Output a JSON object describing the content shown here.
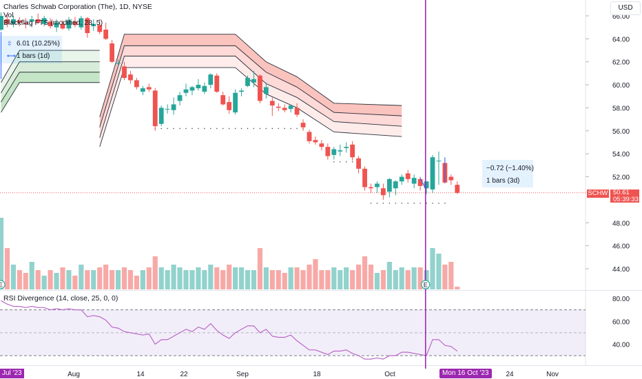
{
  "header": {
    "title": "Charles Schwab Corporation (The), 1D, NYSE",
    "vol": "Vol",
    "indicator": "Blackflag FTS (modified, 28, 5)"
  },
  "currency_button": "USD",
  "measure_left": {
    "change": "6.01 (10.25%)",
    "bars": "1 bars (1d)"
  },
  "measure_right": {
    "change": "−0.72 (−1.40%)",
    "bars": "1 bars (3d)"
  },
  "price_tag": {
    "symbol": "SCHW",
    "price": "50.61",
    "countdown": "05:39:33"
  },
  "rsi": {
    "title": "RSI Divergence (14, close, 25, 0, 0)"
  },
  "x_axis": {
    "start_label": "Jul '23",
    "labels": [
      "Aug",
      "14",
      "22",
      "Sep",
      "18",
      "Oct",
      "24",
      "Nov"
    ],
    "crosshair_label": "Mon 16 Oct '23"
  },
  "y_axis": {
    "price_ticks": [
      "66.00",
      "64.00",
      "62.00",
      "60.00",
      "58.00",
      "56.00",
      "54.00",
      "52.00",
      "48.00",
      "46.00",
      "44.00"
    ],
    "rsi_ticks": [
      "80.00",
      "60.00",
      "40.00"
    ]
  },
  "earnings_marker": "E",
  "colors": {
    "up": "#26a69a",
    "down": "#ef5350",
    "crosshair": "#9c27b0",
    "band_red": "#f44336",
    "band_green": "#4caf50",
    "rsi_line": "#ba68c8"
  },
  "chart_data": {
    "type": "candlestick",
    "symbol": "SCHW",
    "interval": "1D",
    "last_price": 50.61,
    "ylim": [
      42.5,
      67
    ],
    "rsi_ylim": [
      20,
      90
    ],
    "candles": [
      {
        "o": 64.8,
        "h": 66.3,
        "l": 64.7,
        "c": 66.0
      },
      {
        "o": 65.7,
        "h": 66.1,
        "l": 65.0,
        "c": 65.3
      },
      {
        "o": 65.3,
        "h": 66.0,
        "l": 65.0,
        "c": 65.7
      },
      {
        "o": 65.6,
        "h": 65.9,
        "l": 65.1,
        "c": 65.4
      },
      {
        "o": 65.4,
        "h": 65.8,
        "l": 64.9,
        "c": 65.3
      },
      {
        "o": 65.5,
        "h": 66.0,
        "l": 65.0,
        "c": 65.7
      },
      {
        "o": 65.7,
        "h": 66.2,
        "l": 65.3,
        "c": 65.4
      },
      {
        "o": 65.3,
        "h": 66.0,
        "l": 65.1,
        "c": 65.8
      },
      {
        "o": 65.5,
        "h": 65.8,
        "l": 64.9,
        "c": 65.1
      },
      {
        "o": 65.0,
        "h": 65.7,
        "l": 64.6,
        "c": 65.4
      },
      {
        "o": 65.3,
        "h": 65.6,
        "l": 64.8,
        "c": 64.9
      },
      {
        "o": 64.9,
        "h": 65.9,
        "l": 64.7,
        "c": 65.6
      },
      {
        "o": 65.5,
        "h": 65.9,
        "l": 65.0,
        "c": 65.2
      },
      {
        "o": 65.0,
        "h": 66.0,
        "l": 64.8,
        "c": 65.8
      },
      {
        "o": 65.8,
        "h": 65.9,
        "l": 64.1,
        "c": 64.5
      },
      {
        "o": 65.1,
        "h": 65.7,
        "l": 64.7,
        "c": 65.3
      },
      {
        "o": 65.2,
        "h": 65.7,
        "l": 64.4,
        "c": 64.6
      },
      {
        "o": 64.8,
        "h": 65.4,
        "l": 63.9,
        "c": 64.0
      },
      {
        "o": 63.6,
        "h": 63.9,
        "l": 61.9,
        "c": 62.0
      },
      {
        "o": 61.9,
        "h": 62.2,
        "l": 61.6,
        "c": 61.9
      },
      {
        "o": 61.6,
        "h": 62.0,
        "l": 60.4,
        "c": 60.6
      },
      {
        "o": 60.9,
        "h": 61.2,
        "l": 60.1,
        "c": 60.4
      },
      {
        "o": 60.4,
        "h": 60.6,
        "l": 59.6,
        "c": 59.8
      },
      {
        "o": 59.4,
        "h": 59.9,
        "l": 59.1,
        "c": 59.7
      },
      {
        "o": 59.8,
        "h": 60.1,
        "l": 59.4,
        "c": 59.6
      },
      {
        "o": 59.5,
        "h": 59.7,
        "l": 56.0,
        "c": 56.4
      },
      {
        "o": 56.6,
        "h": 58.2,
        "l": 56.4,
        "c": 58.0
      },
      {
        "o": 57.9,
        "h": 58.3,
        "l": 57.5,
        "c": 57.9
      },
      {
        "o": 57.8,
        "h": 58.9,
        "l": 57.4,
        "c": 58.3
      },
      {
        "o": 58.6,
        "h": 59.4,
        "l": 58.2,
        "c": 59.1
      },
      {
        "o": 59.3,
        "h": 60.1,
        "l": 59.0,
        "c": 59.6
      },
      {
        "o": 59.5,
        "h": 59.9,
        "l": 59.1,
        "c": 59.8
      },
      {
        "o": 59.7,
        "h": 60.5,
        "l": 59.5,
        "c": 60.0
      },
      {
        "o": 59.4,
        "h": 60.2,
        "l": 59.2,
        "c": 59.9
      },
      {
        "o": 60.0,
        "h": 61.0,
        "l": 59.7,
        "c": 60.9
      },
      {
        "o": 60.8,
        "h": 61.0,
        "l": 59.3,
        "c": 59.4
      },
      {
        "o": 59.1,
        "h": 59.4,
        "l": 58.2,
        "c": 58.3
      },
      {
        "o": 58.5,
        "h": 59.0,
        "l": 57.5,
        "c": 57.8
      },
      {
        "o": 57.6,
        "h": 59.6,
        "l": 57.4,
        "c": 59.3
      },
      {
        "o": 59.4,
        "h": 59.7,
        "l": 59.0,
        "c": 59.5
      },
      {
        "o": 59.9,
        "h": 60.8,
        "l": 59.8,
        "c": 60.6
      },
      {
        "o": 60.2,
        "h": 61.2,
        "l": 59.8,
        "c": 60.5
      },
      {
        "o": 60.8,
        "h": 60.9,
        "l": 58.4,
        "c": 58.6
      },
      {
        "o": 59.2,
        "h": 60.2,
        "l": 58.8,
        "c": 59.8
      },
      {
        "o": 58.6,
        "h": 58.9,
        "l": 57.3,
        "c": 58.2
      },
      {
        "o": 58.1,
        "h": 58.4,
        "l": 57.7,
        "c": 58.0
      },
      {
        "o": 58.0,
        "h": 58.3,
        "l": 57.6,
        "c": 57.8
      },
      {
        "o": 57.9,
        "h": 58.2,
        "l": 57.6,
        "c": 58.2
      },
      {
        "o": 58.0,
        "h": 58.4,
        "l": 57.2,
        "c": 57.4
      },
      {
        "o": 56.7,
        "h": 57.0,
        "l": 56.0,
        "c": 56.3
      },
      {
        "o": 55.9,
        "h": 56.1,
        "l": 54.9,
        "c": 55.1
      },
      {
        "o": 55.2,
        "h": 55.5,
        "l": 54.8,
        "c": 55.0
      },
      {
        "o": 54.9,
        "h": 55.2,
        "l": 54.3,
        "c": 54.6
      },
      {
        "o": 54.6,
        "h": 54.9,
        "l": 53.5,
        "c": 53.8
      },
      {
        "o": 53.9,
        "h": 54.6,
        "l": 53.5,
        "c": 54.4
      },
      {
        "o": 54.2,
        "h": 54.8,
        "l": 53.8,
        "c": 54.3
      },
      {
        "o": 54.5,
        "h": 55.0,
        "l": 54.1,
        "c": 54.6
      },
      {
        "o": 54.8,
        "h": 55.1,
        "l": 53.4,
        "c": 53.7
      },
      {
        "o": 53.6,
        "h": 53.8,
        "l": 52.3,
        "c": 52.7
      },
      {
        "o": 52.7,
        "h": 52.9,
        "l": 50.8,
        "c": 51.1
      },
      {
        "o": 51.1,
        "h": 51.4,
        "l": 50.6,
        "c": 51.0
      },
      {
        "o": 51.1,
        "h": 51.6,
        "l": 50.6,
        "c": 51.4
      },
      {
        "o": 51.0,
        "h": 51.4,
        "l": 50.0,
        "c": 50.4
      },
      {
        "o": 50.7,
        "h": 51.9,
        "l": 50.2,
        "c": 51.8
      },
      {
        "o": 51.0,
        "h": 51.7,
        "l": 50.4,
        "c": 51.6
      },
      {
        "o": 51.6,
        "h": 52.2,
        "l": 51.3,
        "c": 52.0
      },
      {
        "o": 52.3,
        "h": 52.6,
        "l": 51.5,
        "c": 51.8
      },
      {
        "o": 51.4,
        "h": 52.2,
        "l": 51.0,
        "c": 51.9
      },
      {
        "o": 51.8,
        "h": 52.0,
        "l": 50.8,
        "c": 51.2
      },
      {
        "o": 51.0,
        "h": 51.6,
        "l": 50.5,
        "c": 51.6
      },
      {
        "o": 50.9,
        "h": 53.9,
        "l": 50.6,
        "c": 53.7
      },
      {
        "o": 53.4,
        "h": 54.2,
        "l": 51.3,
        "c": 53.4
      },
      {
        "o": 53.2,
        "h": 53.5,
        "l": 51.4,
        "c": 51.5
      },
      {
        "o": 52.0,
        "h": 52.2,
        "l": 51.3,
        "c": 51.7
      },
      {
        "o": 51.3,
        "h": 51.6,
        "l": 50.5,
        "c": 50.6
      }
    ],
    "volume": [
      52,
      30,
      18,
      14,
      12,
      20,
      14,
      10,
      14,
      12,
      16,
      14,
      10,
      18,
      14,
      14,
      16,
      18,
      14,
      14,
      16,
      14,
      10,
      14,
      16,
      24,
      16,
      14,
      18,
      16,
      14,
      14,
      16,
      14,
      18,
      16,
      14,
      18,
      16,
      16,
      14,
      14,
      30,
      16,
      14,
      14,
      12,
      16,
      16,
      14,
      18,
      22,
      14,
      14,
      16,
      14,
      16,
      14,
      18,
      24,
      18,
      12,
      14,
      20,
      14,
      16,
      14,
      16,
      16,
      14,
      30,
      26,
      18,
      20,
      2
    ],
    "bands": {
      "red_top": [
        [
          16,
          57.2
        ],
        [
          20,
          64.4
        ],
        [
          38,
          64.4
        ],
        [
          43,
          62.0
        ],
        [
          48,
          60.7
        ],
        [
          54,
          58.4
        ],
        [
          65,
          58.2
        ]
      ],
      "red_mid": [
        [
          16,
          56.3
        ],
        [
          20,
          63.4
        ],
        [
          38,
          63.4
        ],
        [
          43,
          61.1
        ],
        [
          48,
          59.8
        ],
        [
          54,
          57.6
        ],
        [
          65,
          57.3
        ]
      ],
      "red_low": [
        [
          16,
          55.4
        ],
        [
          20,
          62.5
        ],
        [
          38,
          62.5
        ],
        [
          43,
          60.1
        ],
        [
          48,
          58.9
        ],
        [
          54,
          56.8
        ],
        [
          65,
          56.4
        ]
      ],
      "red_base": [
        [
          16,
          54.6
        ],
        [
          20,
          61.5
        ],
        [
          38,
          61.5
        ],
        [
          43,
          59.2
        ],
        [
          48,
          58.0
        ],
        [
          54,
          55.9
        ],
        [
          65,
          55.5
        ]
      ],
      "green_top": [
        [
          0,
          60.2
        ],
        [
          3,
          63.0
        ],
        [
          16,
          63.0
        ]
      ],
      "green_mid": [
        [
          0,
          59.3
        ],
        [
          3,
          62.0
        ],
        [
          16,
          62.0
        ]
      ],
      "green_low": [
        [
          0,
          58.5
        ],
        [
          3,
          61.1
        ],
        [
          16,
          61.1
        ]
      ],
      "green_base": [
        [
          0,
          57.6
        ],
        [
          3,
          60.2
        ],
        [
          16,
          60.2
        ]
      ]
    },
    "rsi": [
      78,
      75,
      73,
      73,
      72,
      73,
      72,
      72,
      70,
      71,
      70,
      71,
      70,
      70,
      64,
      65,
      64,
      61,
      55,
      54,
      51,
      50,
      49,
      48,
      49,
      40,
      44,
      44,
      47,
      50,
      53,
      51,
      55,
      53,
      58,
      52,
      48,
      45,
      50,
      53,
      56,
      56,
      50,
      53,
      47,
      46,
      46,
      48,
      43,
      39,
      35,
      35,
      33,
      31,
      34,
      34,
      35,
      32,
      30,
      27,
      27,
      28,
      27,
      30,
      30,
      33,
      33,
      32,
      31,
      30,
      44,
      44,
      39,
      38,
      34
    ],
    "rsi_band": [
      30,
      70
    ],
    "rsi_mid": 50,
    "crosshair_index": 68.8
  }
}
